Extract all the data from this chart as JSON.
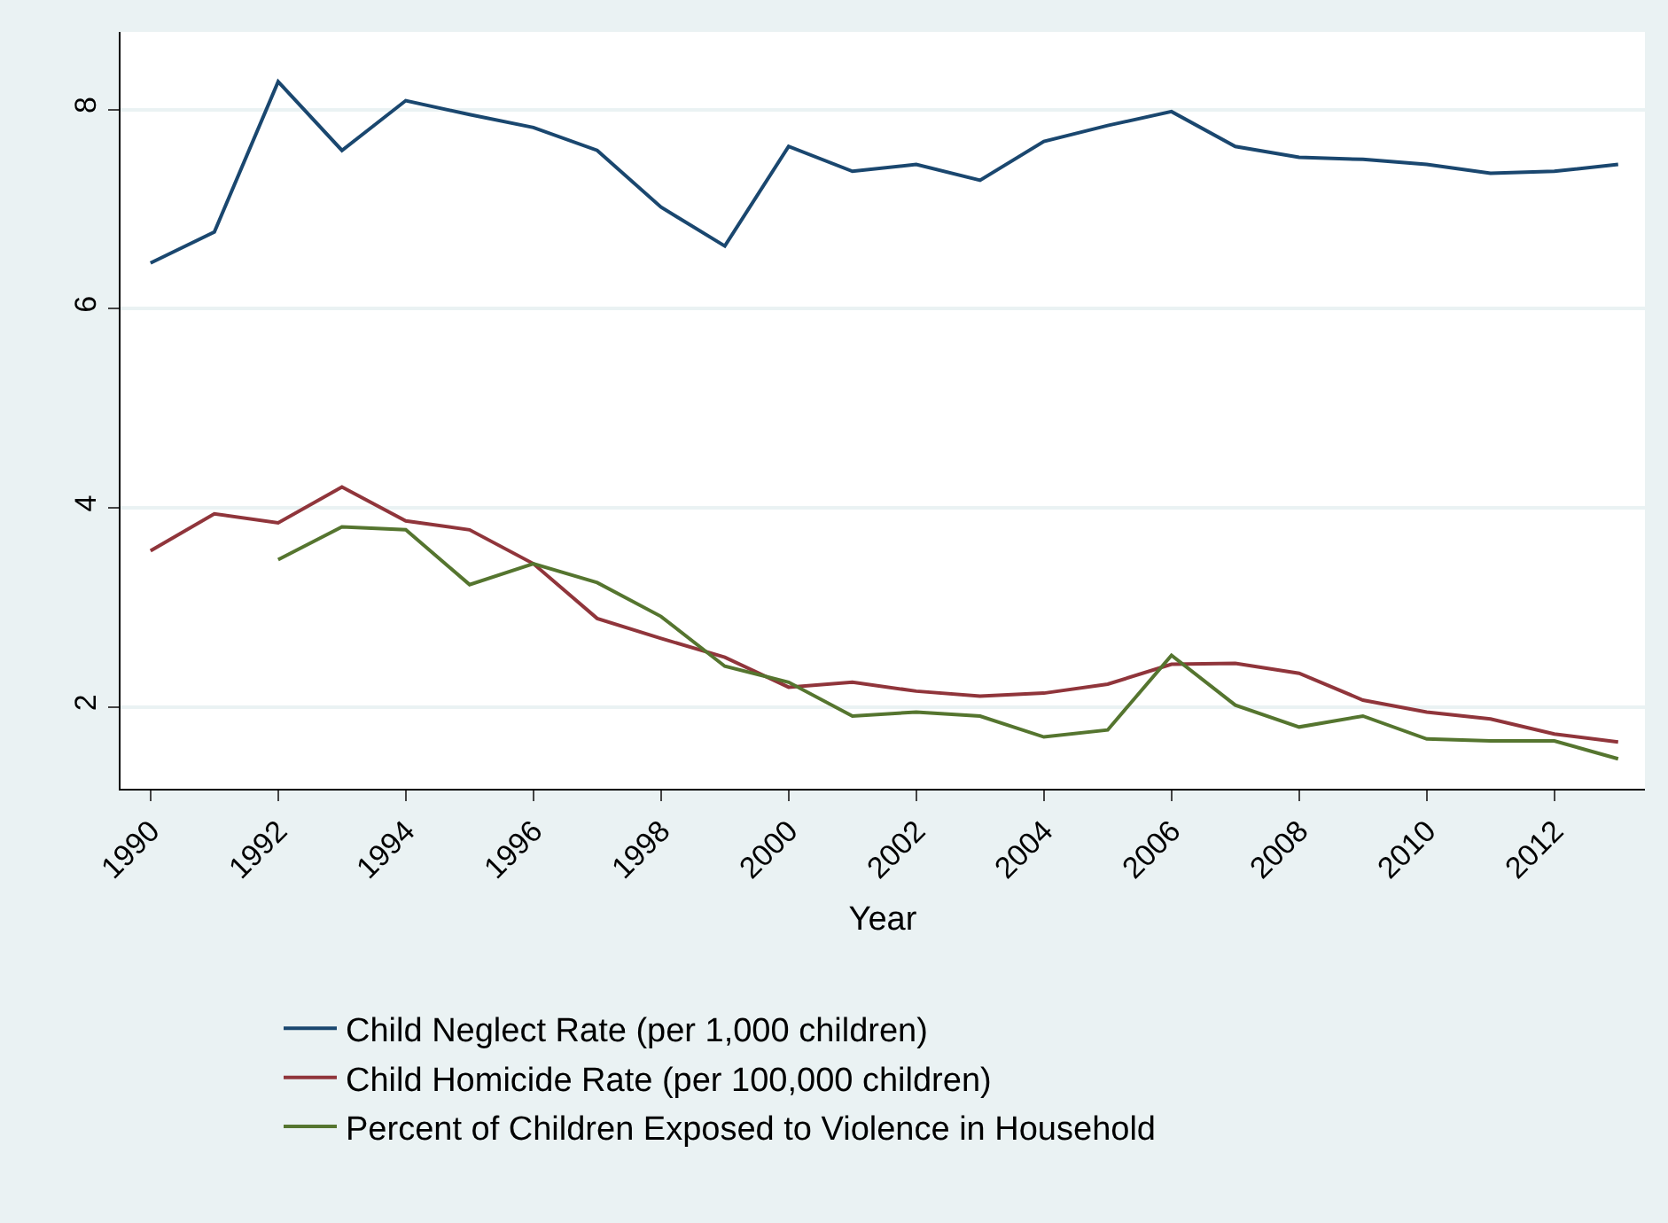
{
  "chart_data": {
    "type": "line",
    "xlabel": "Year",
    "x": [
      1990,
      1991,
      1992,
      1993,
      1994,
      1995,
      1996,
      1997,
      1998,
      1999,
      2000,
      2001,
      2002,
      2003,
      2004,
      2005,
      2006,
      2007,
      2008,
      2009,
      2010,
      2011,
      2012,
      2013
    ],
    "series": [
      {
        "name": "Child Neglect Rate (per 1,000 children)",
        "color": "#1a476f",
        "values": [
          6.46,
          6.77,
          8.28,
          7.59,
          8.09,
          7.95,
          7.82,
          7.59,
          7.02,
          6.63,
          7.63,
          7.38,
          7.45,
          7.29,
          7.68,
          7.84,
          7.98,
          7.63,
          7.52,
          7.5,
          7.45,
          7.36,
          7.38,
          7.45
        ]
      },
      {
        "name": "Child Homicide Rate (per 100,000 children)",
        "color": "#90353b",
        "values": [
          3.57,
          3.94,
          3.85,
          4.21,
          3.87,
          3.78,
          3.44,
          2.89,
          2.69,
          2.5,
          2.2,
          2.25,
          2.16,
          2.11,
          2.14,
          2.23,
          2.43,
          2.44,
          2.34,
          2.07,
          1.95,
          1.88,
          1.73,
          1.65
        ]
      },
      {
        "name": "Percent of Children Exposed to Violence in Household",
        "color": "#55752f",
        "values": [
          null,
          null,
          3.48,
          3.81,
          3.78,
          3.23,
          3.44,
          3.25,
          2.91,
          2.41,
          2.25,
          1.91,
          1.95,
          1.91,
          1.7,
          1.77,
          2.52,
          2.02,
          1.8,
          1.91,
          1.68,
          1.66,
          1.66,
          1.48
        ]
      }
    ],
    "xlim": [
      1989.53,
      2013.42
    ],
    "xticks": [
      1990,
      1992,
      1994,
      1996,
      1998,
      2000,
      2002,
      2004,
      2006,
      2008,
      2010,
      2012
    ],
    "ylim": [
      1.18,
      8.78
    ],
    "yticks": [
      2,
      4,
      6,
      8
    ],
    "grid": "y",
    "legend": "bottom",
    "marker": "none",
    "line_style": "solid"
  }
}
